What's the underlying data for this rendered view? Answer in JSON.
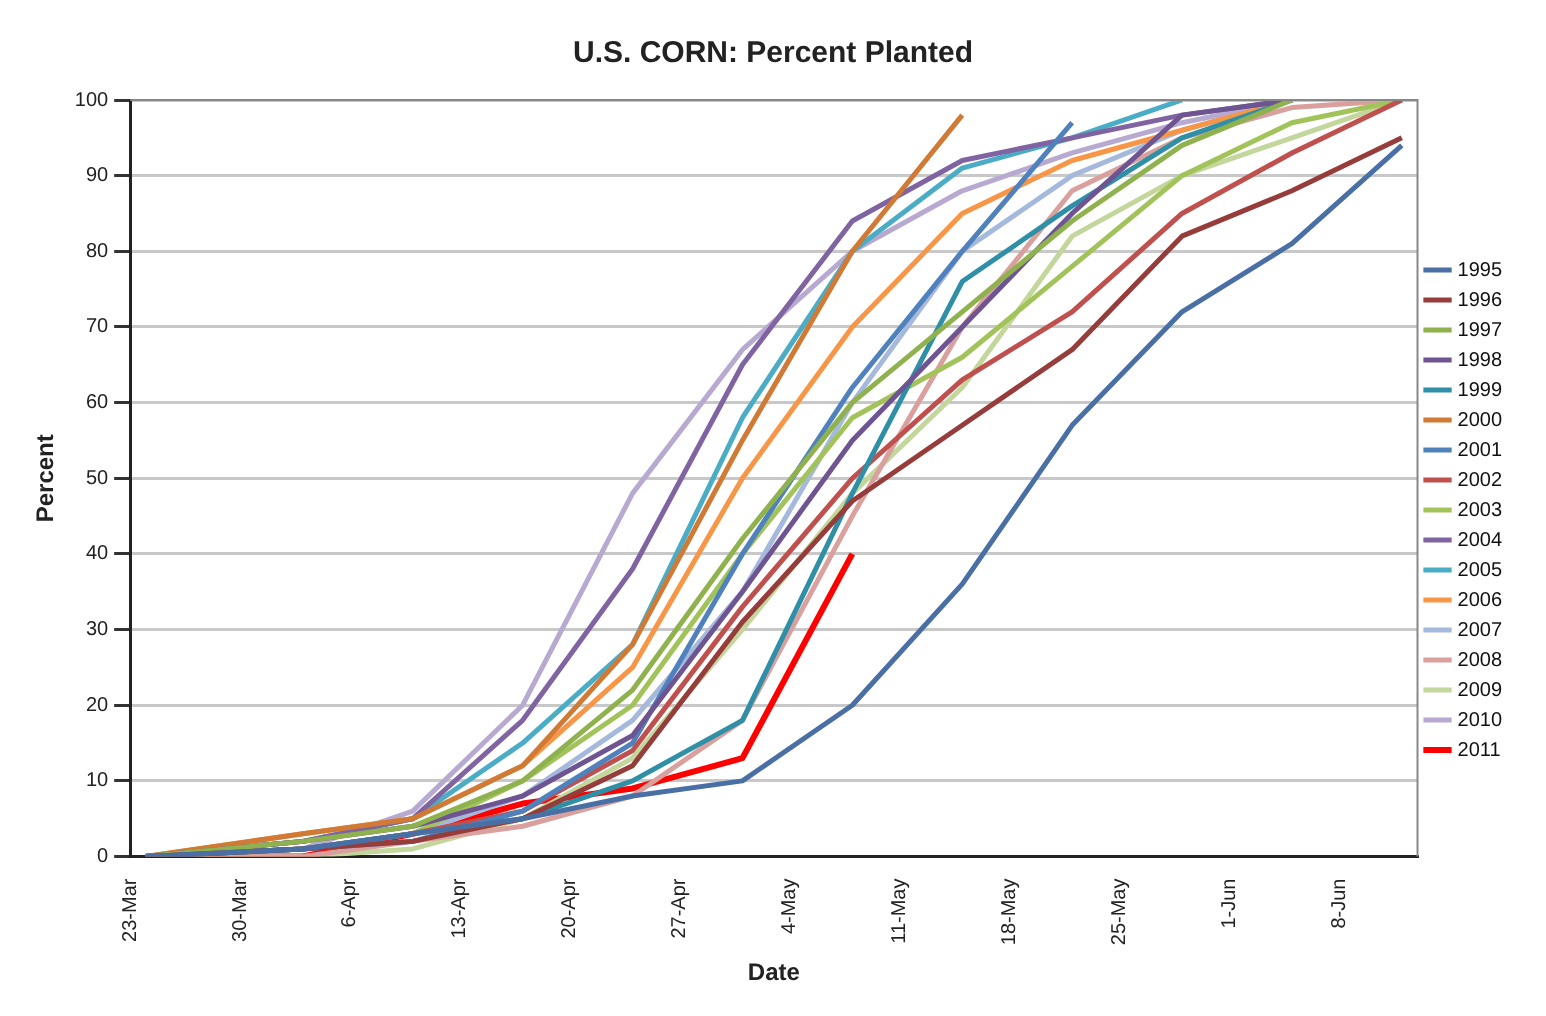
{
  "chart_data": {
    "type": "line",
    "title": "U.S. CORN: Percent Planted",
    "xlabel": "Date",
    "ylabel": "Percent",
    "x": [
      "--03-24",
      "--04-03",
      "--04-10",
      "--04-17",
      "--04-24",
      "--05-01",
      "--05-08",
      "--05-15",
      "--05-22",
      "--05-29",
      "--06-05",
      "--06-12"
    ],
    "xlim": [
      "--03-23",
      "--06-13"
    ],
    "xticks": [
      {
        "value": "--03-23",
        "label": "23-Mar"
      },
      {
        "value": "--03-30",
        "label": "30-Mar"
      },
      {
        "value": "--04-06",
        "label": "6-Apr"
      },
      {
        "value": "--04-13",
        "label": "13-Apr"
      },
      {
        "value": "--04-20",
        "label": "20-Apr"
      },
      {
        "value": "--04-27",
        "label": "27-Apr"
      },
      {
        "value": "--05-04",
        "label": "4-May"
      },
      {
        "value": "--05-11",
        "label": "11-May"
      },
      {
        "value": "--05-18",
        "label": "18-May"
      },
      {
        "value": "--05-25",
        "label": "25-May"
      },
      {
        "value": "--06-01",
        "label": "1-Jun"
      },
      {
        "value": "--06-08",
        "label": "8-Jun"
      }
    ],
    "ylim": [
      0,
      100
    ],
    "yticks": [
      0,
      10,
      20,
      30,
      40,
      50,
      60,
      70,
      80,
      90,
      100
    ],
    "grid": "y",
    "legend": "right",
    "marker": "none",
    "line_style": "solid",
    "series": [
      {
        "name": "1995",
        "color": "#4a6fa5",
        "values": [
          0,
          1,
          3,
          5,
          8,
          10,
          20,
          36,
          57,
          72,
          81,
          94
        ]
      },
      {
        "name": "1996",
        "color": "#963c3a",
        "values": [
          0,
          1,
          2,
          5,
          12,
          31,
          47,
          57,
          67,
          82,
          88,
          95
        ]
      },
      {
        "name": "1997",
        "color": "#8fb24f",
        "values": [
          0,
          2,
          4,
          10,
          22,
          42,
          60,
          72,
          84,
          94,
          100,
          null
        ]
      },
      {
        "name": "1998",
        "color": "#6e5592",
        "values": [
          0,
          2,
          4,
          8,
          16,
          35,
          55,
          70,
          85,
          98,
          100,
          null
        ]
      },
      {
        "name": "1999",
        "color": "#2f8fa6",
        "values": [
          0,
          1,
          3,
          5,
          10,
          18,
          48,
          76,
          86,
          95,
          100,
          null
        ]
      },
      {
        "name": "2000",
        "color": "#d07a35",
        "values": [
          0,
          3,
          5,
          12,
          28,
          55,
          80,
          98,
          null,
          null,
          null,
          null
        ]
      },
      {
        "name": "2001",
        "color": "#4f81bd",
        "values": [
          0,
          1,
          2,
          6,
          15,
          40,
          62,
          80,
          97,
          null,
          null,
          null
        ]
      },
      {
        "name": "2002",
        "color": "#c0504d",
        "values": [
          0,
          1,
          3,
          6,
          14,
          33,
          50,
          63,
          72,
          85,
          93,
          100
        ]
      },
      {
        "name": "2003",
        "color": "#a2c35a",
        "values": [
          0,
          1,
          3,
          10,
          20,
          40,
          58,
          66,
          78,
          90,
          97,
          100
        ]
      },
      {
        "name": "2004",
        "color": "#8064a2",
        "values": [
          0,
          2,
          5,
          18,
          38,
          65,
          84,
          92,
          95,
          98,
          100,
          null
        ]
      },
      {
        "name": "2005",
        "color": "#4bacc6",
        "values": [
          0,
          2,
          5,
          15,
          28,
          58,
          80,
          91,
          95,
          100,
          null,
          null
        ]
      },
      {
        "name": "2006",
        "color": "#f79646",
        "values": [
          0,
          3,
          5,
          12,
          25,
          50,
          70,
          85,
          92,
          96,
          100,
          null
        ]
      },
      {
        "name": "2007",
        "color": "#a5b9dc",
        "values": [
          0,
          1,
          3,
          8,
          18,
          35,
          60,
          80,
          90,
          96,
          100,
          null
        ]
      },
      {
        "name": "2008",
        "color": "#d9a09e",
        "values": [
          0,
          0,
          2,
          4,
          8,
          18,
          45,
          70,
          88,
          95,
          99,
          100
        ]
      },
      {
        "name": "2009",
        "color": "#c3d69b",
        "values": [
          0,
          0,
          1,
          5,
          13,
          30,
          48,
          62,
          82,
          90,
          95,
          100
        ]
      },
      {
        "name": "2010",
        "color": "#b8a9d0",
        "values": [
          0,
          1,
          6,
          20,
          48,
          67,
          80,
          88,
          93,
          97,
          100,
          null
        ]
      },
      {
        "name": "2011",
        "color": "#ff0000",
        "values": [
          0,
          0,
          3,
          7,
          9,
          13,
          40,
          null,
          null,
          null,
          null,
          null
        ]
      }
    ]
  }
}
